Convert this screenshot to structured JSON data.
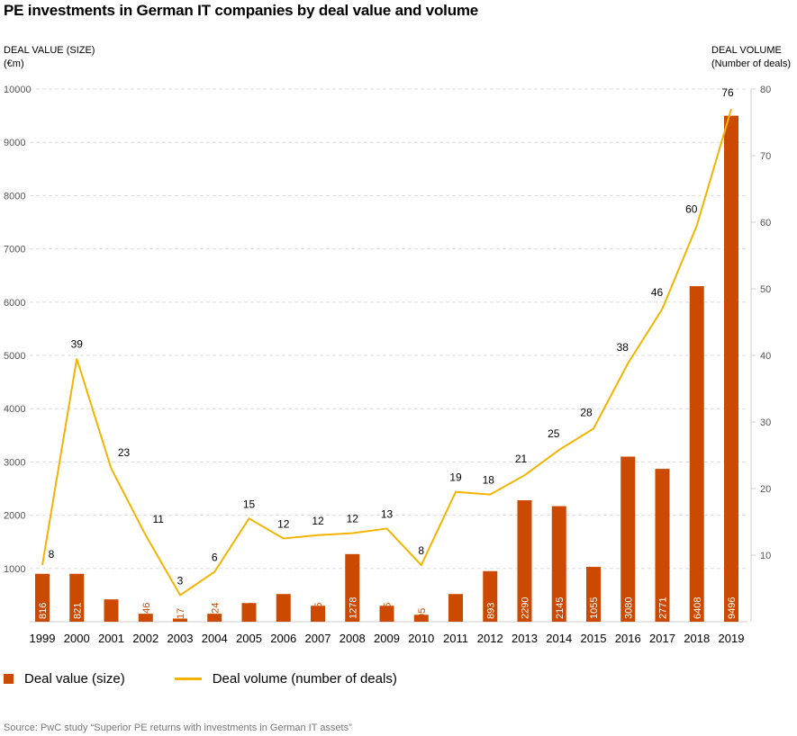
{
  "title": "PE investments in German IT companies by deal value and volume",
  "left_axis_title": [
    "DEAL VALUE (SIZE)",
    "(€m)"
  ],
  "right_axis_title": [
    "DEAL VOLUME",
    "(Number of deals)"
  ],
  "legend": {
    "bar_label": "Deal value (size)",
    "line_label": "Deal volume (number of deals)"
  },
  "source": "Source: PwC study “Superior PE returns with investments in German IT assets”",
  "colors": {
    "bar": "#cc4a00",
    "line": "#f5b301",
    "grid": "#dddddd",
    "axis_text": "#555555"
  },
  "chart_data": {
    "type": "bar",
    "categories": [
      "1999",
      "2000",
      "2001",
      "2002",
      "2003",
      "2004",
      "2005",
      "2006",
      "2007",
      "2008",
      "2009",
      "2010",
      "2011",
      "2012",
      "2013",
      "2014",
      "2015",
      "2016",
      "2017",
      "2018",
      "2019"
    ],
    "series": [
      {
        "name": "Deal value (size)",
        "type": "bar",
        "axis": "left",
        "values": [
          816,
          821,
          353,
          146,
          17,
          124,
          266,
          448,
          245,
          1278,
          235,
          95,
          444,
          893,
          2290,
          2145,
          1055,
          3080,
          2771,
          6408,
          9496
        ],
        "plotted_values": [
          900,
          900,
          420,
          150,
          60,
          150,
          350,
          520,
          300,
          1270,
          300,
          130,
          520,
          950,
          2280,
          2170,
          1030,
          3100,
          2870,
          6300,
          9500
        ]
      },
      {
        "name": "Deal volume (number of deals)",
        "type": "line",
        "axis": "right",
        "values": [
          8,
          39,
          23,
          11,
          3,
          6,
          15,
          12,
          12,
          12,
          13,
          8,
          19,
          18,
          21,
          25,
          28,
          38,
          46,
          60,
          76
        ],
        "plotted_values": [
          8.5,
          39.5,
          23,
          13,
          4,
          7.5,
          15.5,
          12.5,
          13,
          13.3,
          14,
          8.5,
          19.5,
          19.1,
          22,
          25.8,
          29,
          38.8,
          47,
          59.5,
          77
        ]
      }
    ],
    "y_left": {
      "min": 0,
      "max": 10000,
      "ticks": [
        1000,
        2000,
        3000,
        4000,
        5000,
        6000,
        7000,
        8000,
        9000,
        10000
      ]
    },
    "y_right": {
      "min": 0,
      "max": 80,
      "ticks": [
        10,
        20,
        30,
        40,
        50,
        60,
        70,
        80
      ]
    },
    "grid": true,
    "legend_position": "bottom-left"
  }
}
